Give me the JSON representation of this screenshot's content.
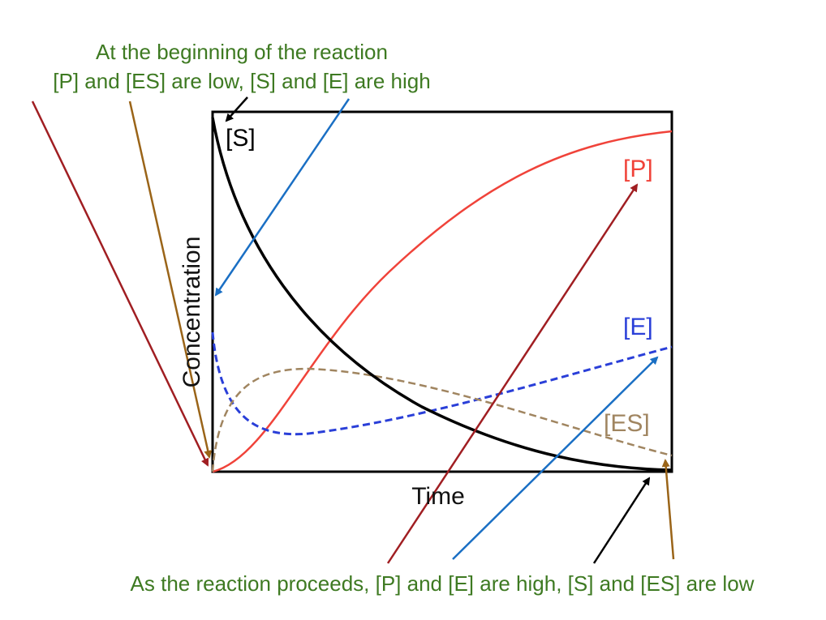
{
  "annotations": {
    "top": [
      "At the beginning of the reaction",
      "[P] and [ES] are low, [S] and [E] are high"
    ],
    "bottom": "As the reaction proceeds, [P] and [E] are high, [S] and [ES] are low"
  },
  "axes": {
    "x_label": "Time",
    "y_label": "Concentration"
  },
  "curves": {
    "s": "[S]",
    "p": "[P]",
    "e": "[E]",
    "es": "[ES]"
  }
}
